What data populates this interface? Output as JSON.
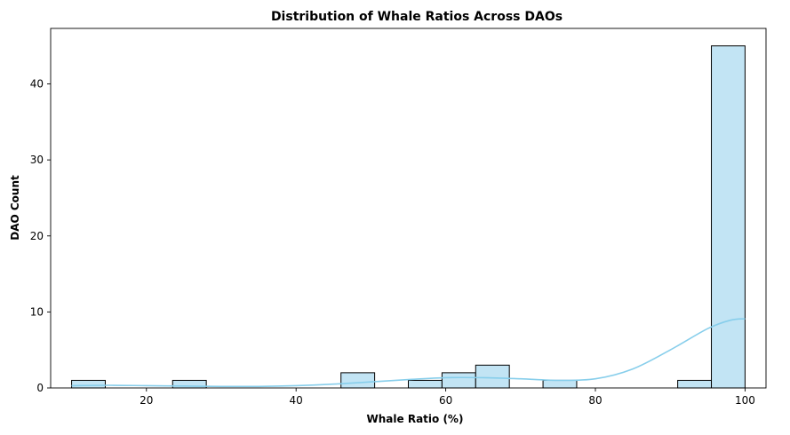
{
  "chart_data": {
    "type": "bar",
    "title": "Distribution of Whale Ratios Across DAOs",
    "xlabel": "Whale Ratio (%)",
    "ylabel": "DAO Count",
    "xlim": [
      7.2,
      102.8
    ],
    "ylim": [
      0,
      47.3
    ],
    "xticks": [
      20,
      40,
      60,
      80,
      100
    ],
    "yticks": [
      0,
      10,
      20,
      30,
      40
    ],
    "bar_color": "#c2e4f4",
    "bar_edge_color": "#000000",
    "kde_color": "#87ceeb",
    "grid": false,
    "bins": [
      {
        "x0": 10.0,
        "x1": 14.5,
        "count": 1
      },
      {
        "x0": 14.5,
        "x1": 19.0,
        "count": 0
      },
      {
        "x0": 19.0,
        "x1": 23.5,
        "count": 0
      },
      {
        "x0": 23.5,
        "x1": 28.0,
        "count": 1
      },
      {
        "x0": 28.0,
        "x1": 32.5,
        "count": 0
      },
      {
        "x0": 32.5,
        "x1": 37.0,
        "count": 0
      },
      {
        "x0": 37.0,
        "x1": 41.5,
        "count": 0
      },
      {
        "x0": 41.5,
        "x1": 46.0,
        "count": 0
      },
      {
        "x0": 46.0,
        "x1": 50.5,
        "count": 2
      },
      {
        "x0": 50.5,
        "x1": 55.0,
        "count": 0
      },
      {
        "x0": 55.0,
        "x1": 59.5,
        "count": 1
      },
      {
        "x0": 59.5,
        "x1": 64.0,
        "count": 2
      },
      {
        "x0": 64.0,
        "x1": 68.5,
        "count": 3
      },
      {
        "x0": 68.5,
        "x1": 73.0,
        "count": 0
      },
      {
        "x0": 73.0,
        "x1": 77.5,
        "count": 1
      },
      {
        "x0": 77.5,
        "x1": 82.0,
        "count": 0
      },
      {
        "x0": 82.0,
        "x1": 86.5,
        "count": 0
      },
      {
        "x0": 86.5,
        "x1": 91.0,
        "count": 0
      },
      {
        "x0": 91.0,
        "x1": 95.5,
        "count": 1
      },
      {
        "x0": 95.5,
        "x1": 100.0,
        "count": 45
      }
    ],
    "kde": {
      "x": [
        10,
        15,
        20,
        25,
        30,
        35,
        40,
        45,
        50,
        55,
        60,
        65,
        70,
        75,
        80,
        85,
        90,
        95,
        98,
        100
      ],
      "y": [
        0.3,
        0.35,
        0.3,
        0.25,
        0.2,
        0.2,
        0.3,
        0.5,
        0.8,
        1.1,
        1.35,
        1.35,
        1.2,
        1.0,
        1.2,
        2.5,
        5.0,
        7.8,
        8.9,
        9.1
      ]
    }
  }
}
